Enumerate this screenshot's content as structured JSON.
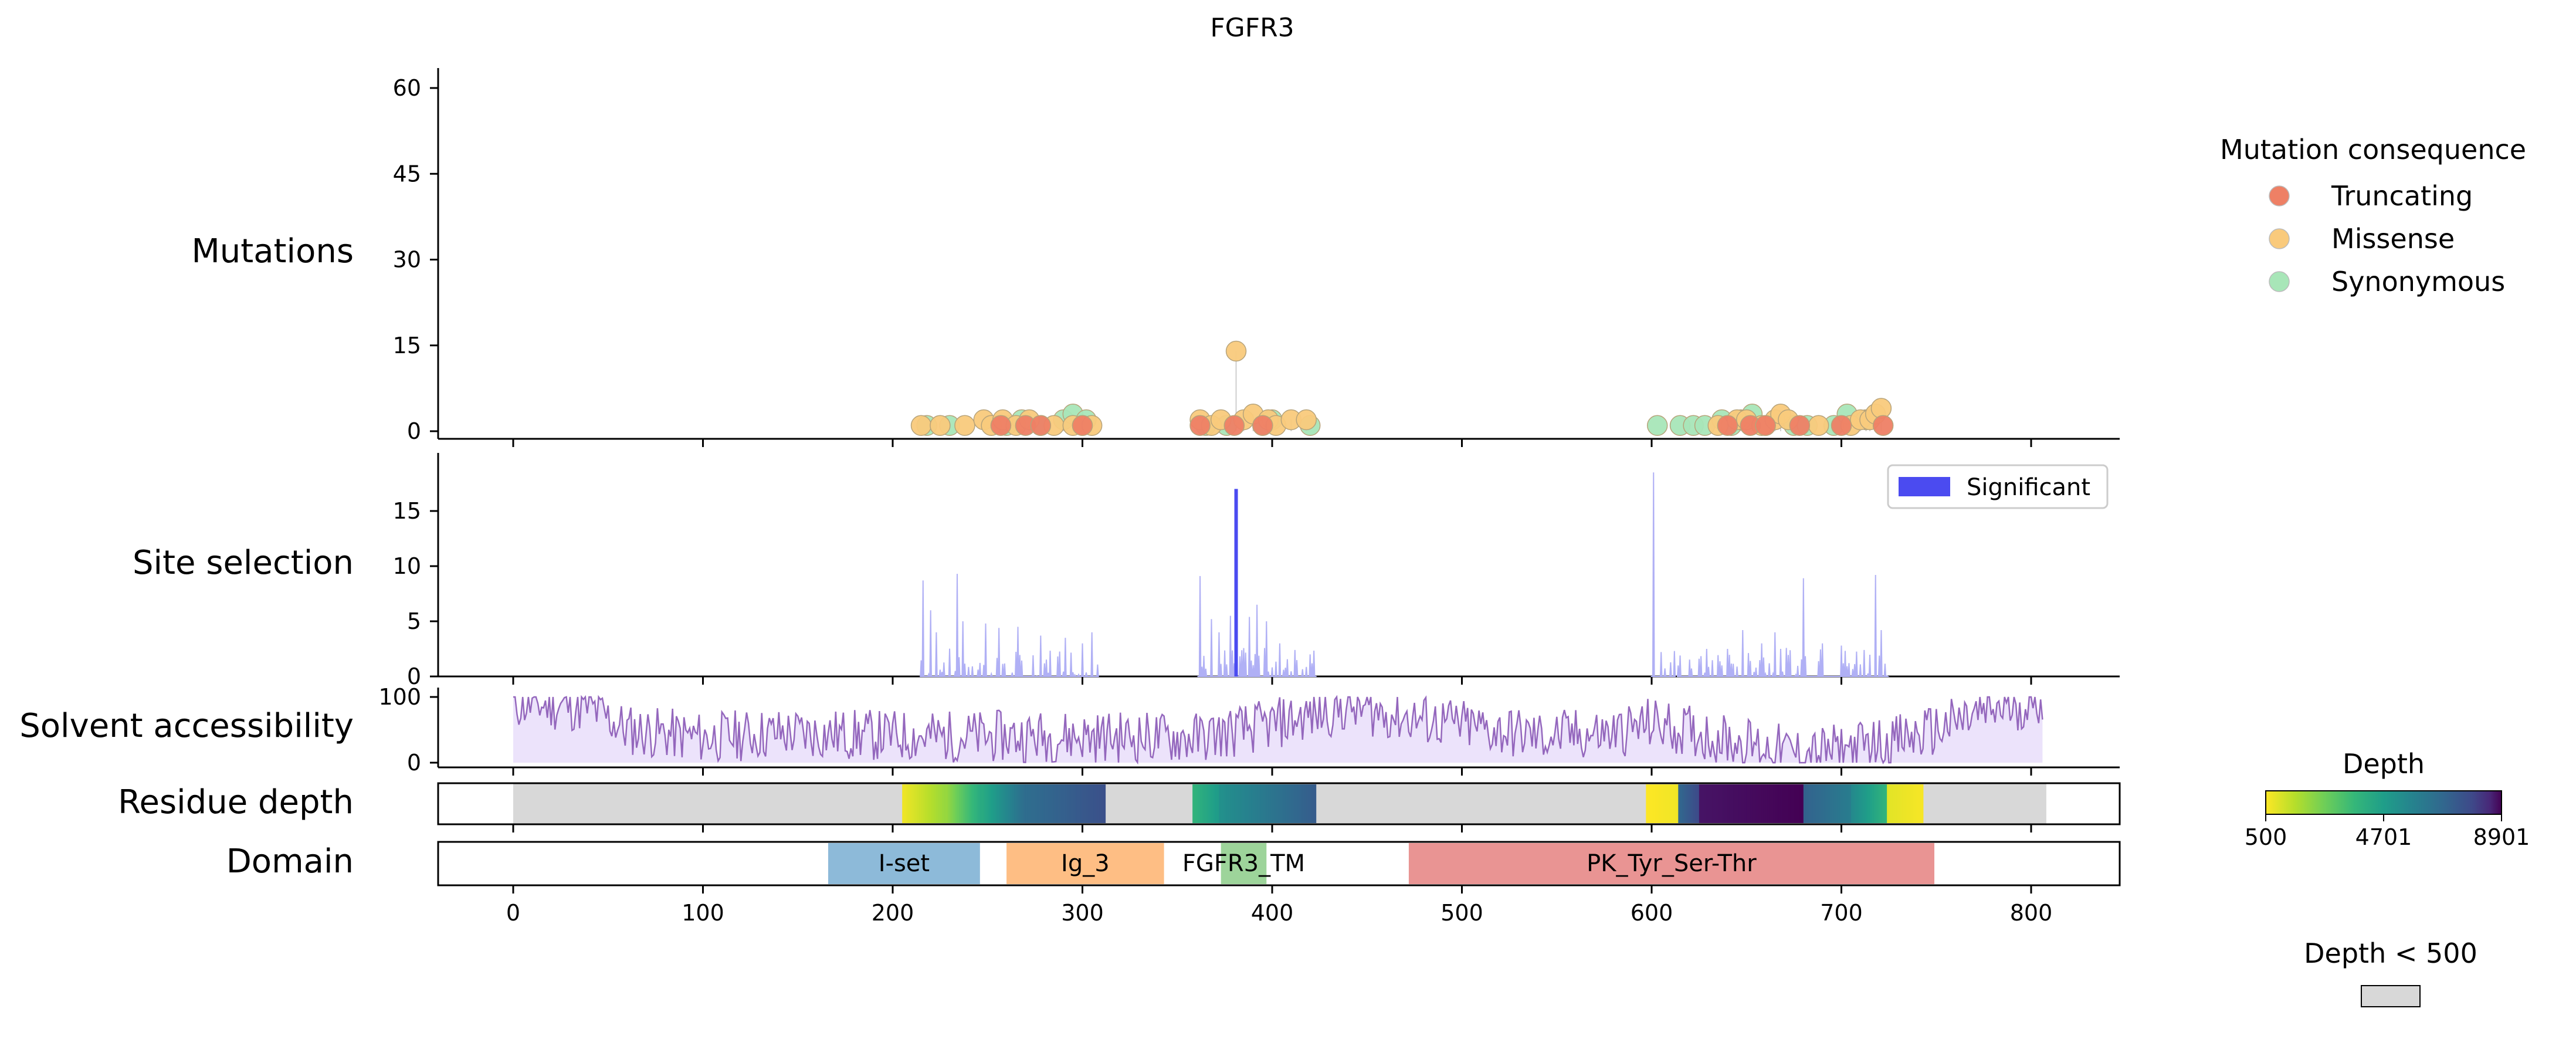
{
  "figure": {
    "title": "FGFR3"
  },
  "chart_data": [
    {
      "type": "scatter",
      "panel": "Mutations",
      "ylabel": "Mutations",
      "xlim": [
        -40,
        848
      ],
      "ylim": [
        -2,
        63
      ],
      "yticks": [
        0,
        15,
        30,
        45,
        60
      ],
      "grid": false,
      "legend": {
        "title": "Mutation consequence",
        "placement": "right",
        "entries": [
          {
            "name": "Truncating",
            "color": "#ee8065"
          },
          {
            "name": "Missense",
            "color": "#f9ca7c"
          },
          {
            "name": "Synonymous",
            "color": "#a8e6b8"
          }
        ]
      },
      "series": [
        {
          "name": "Truncating",
          "color": "#ee8065",
          "points": [
            [
              257,
              1
            ],
            [
              270,
              1
            ],
            [
              278,
              1
            ],
            [
              300,
              1
            ],
            [
              362,
              1
            ],
            [
              380,
              1
            ],
            [
              395,
              1
            ],
            [
              640,
              1
            ],
            [
              652,
              1
            ],
            [
              660,
              1
            ],
            [
              678,
              1
            ],
            [
              700,
              1
            ],
            [
              722,
              1
            ]
          ]
        },
        {
          "name": "Missense",
          "color": "#f9ca7c",
          "points": [
            [
              215,
              1
            ],
            [
              225,
              1
            ],
            [
              238,
              1
            ],
            [
              248,
              2
            ],
            [
              252,
              1
            ],
            [
              258,
              2
            ],
            [
              265,
              1
            ],
            [
              272,
              2
            ],
            [
              285,
              1
            ],
            [
              295,
              1
            ],
            [
              300,
              1
            ],
            [
              305,
              1
            ],
            [
              362,
              2
            ],
            [
              368,
              1
            ],
            [
              373,
              2
            ],
            [
              381,
              14
            ],
            [
              385,
              2
            ],
            [
              390,
              3
            ],
            [
              398,
              2
            ],
            [
              402,
              1
            ],
            [
              410,
              2
            ],
            [
              418,
              2
            ],
            [
              635,
              1
            ],
            [
              645,
              2
            ],
            [
              650,
              2
            ],
            [
              658,
              1
            ],
            [
              665,
              2
            ],
            [
              668,
              3
            ],
            [
              672,
              2
            ],
            [
              688,
              1
            ],
            [
              705,
              1
            ],
            [
              710,
              2
            ],
            [
              715,
              2
            ],
            [
              718,
              3
            ],
            [
              721,
              4
            ]
          ]
        },
        {
          "name": "Synonymous",
          "color": "#a8e6b8",
          "points": [
            [
              218,
              1
            ],
            [
              230,
              1
            ],
            [
              260,
              1
            ],
            [
              268,
              2
            ],
            [
              278,
              1
            ],
            [
              290,
              2
            ],
            [
              295,
              3
            ],
            [
              302,
              2
            ],
            [
              365,
              1
            ],
            [
              376,
              1
            ],
            [
              395,
              1
            ],
            [
              400,
              2
            ],
            [
              420,
              1
            ],
            [
              603,
              1
            ],
            [
              615,
              1
            ],
            [
              622,
              1
            ],
            [
              628,
              1
            ],
            [
              637,
              2
            ],
            [
              642,
              1
            ],
            [
              647,
              2
            ],
            [
              653,
              3
            ],
            [
              660,
              1
            ],
            [
              675,
              1
            ],
            [
              682,
              1
            ],
            [
              696,
              1
            ],
            [
              703,
              3
            ],
            [
              713,
              2
            ]
          ]
        }
      ]
    },
    {
      "type": "bar",
      "panel": "Site selection",
      "ylabel": "Site selection",
      "xlim": [
        -40,
        848
      ],
      "ylim": [
        0,
        20
      ],
      "yticks": [
        0,
        5,
        10,
        15
      ],
      "legend": {
        "placement": "top-right",
        "entries": [
          {
            "name": "Significant",
            "color": "#4b4bf0"
          }
        ]
      },
      "background_color": "#b0b0f5",
      "background_regions": [
        [
          215,
          308
        ],
        [
          361,
          423
        ],
        [
          600,
          612
        ],
        [
          614,
          724
        ]
      ],
      "background_peaks": [
        [
          216,
          8.7
        ],
        [
          220,
          6
        ],
        [
          223,
          4
        ],
        [
          234,
          9.3
        ],
        [
          237,
          5
        ],
        [
          249,
          4.8
        ],
        [
          256,
          4.4
        ],
        [
          266,
          4.5
        ],
        [
          278,
          3.7
        ],
        [
          291,
          3.5
        ],
        [
          300,
          3
        ],
        [
          305,
          4
        ],
        [
          362,
          9.1
        ],
        [
          368,
          5.2
        ],
        [
          372,
          4
        ],
        [
          378,
          5.5
        ],
        [
          388,
          5.4
        ],
        [
          392,
          6.5
        ],
        [
          397,
          5
        ],
        [
          404,
          3
        ],
        [
          412,
          2.4
        ],
        [
          420,
          2
        ],
        [
          601,
          18.5
        ],
        [
          615,
          1.9
        ],
        [
          640,
          2.5
        ],
        [
          648,
          4.2
        ],
        [
          658,
          3
        ],
        [
          665,
          4
        ],
        [
          680,
          8.9
        ],
        [
          690,
          3
        ],
        [
          700,
          2.8
        ],
        [
          712,
          2.4
        ],
        [
          718,
          9.2
        ],
        [
          721,
          4.2
        ]
      ],
      "significant": [
        {
          "x": 381,
          "value": 17
        }
      ]
    },
    {
      "type": "area",
      "panel": "Solvent accessibility",
      "ylabel": "Solvent accessibility",
      "xlim": [
        -40,
        848
      ],
      "ylim": [
        0,
        100
      ],
      "yticks": [
        0,
        100
      ],
      "x_range": [
        0,
        806
      ],
      "line_color": "#9467bd",
      "fill_color": "#ece3fb",
      "mean_profile": [
        [
          0,
          90
        ],
        [
          40,
          85
        ],
        [
          60,
          50
        ],
        [
          100,
          38
        ],
        [
          140,
          45
        ],
        [
          220,
          40
        ],
        [
          300,
          40
        ],
        [
          360,
          38
        ],
        [
          395,
          55
        ],
        [
          440,
          85
        ],
        [
          480,
          65
        ],
        [
          540,
          40
        ],
        [
          580,
          45
        ],
        [
          600,
          60
        ],
        [
          640,
          35
        ],
        [
          680,
          12
        ],
        [
          700,
          20
        ],
        [
          740,
          40
        ],
        [
          780,
          80
        ],
        [
          806,
          95
        ]
      ]
    },
    {
      "type": "heatmap",
      "panel": "Residue depth",
      "ylabel": "Residue depth",
      "xlim": [
        -40,
        848
      ],
      "missing_color": "#d8d8d8",
      "missing_label": "Depth < 500",
      "colorbar": {
        "title": "Depth",
        "min": 500,
        "mid": 4701,
        "max": 8901,
        "ticks": [
          "500",
          "4701",
          "8901"
        ],
        "colormap": "viridis_r"
      },
      "x_range": [
        0,
        808
      ],
      "segments": [
        {
          "start": 205,
          "end": 228,
          "from": 700,
          "to": 2000
        },
        {
          "start": 228,
          "end": 247,
          "from": 2000,
          "to": 4200
        },
        {
          "start": 247,
          "end": 270,
          "from": 4200,
          "to": 6600
        },
        {
          "start": 270,
          "end": 312,
          "from": 6600,
          "to": 7600
        },
        {
          "start": 358,
          "end": 372,
          "from": 3800,
          "to": 4800
        },
        {
          "start": 372,
          "end": 423,
          "from": 5200,
          "to": 7200
        },
        {
          "start": 597,
          "end": 614,
          "from": 500,
          "to": 700
        },
        {
          "start": 614,
          "end": 625,
          "from": 6800,
          "to": 7800
        },
        {
          "start": 625,
          "end": 680,
          "from": 8700,
          "to": 8901
        },
        {
          "start": 680,
          "end": 705,
          "from": 7000,
          "to": 6000
        },
        {
          "start": 705,
          "end": 724,
          "from": 5500,
          "to": 3800
        },
        {
          "start": 724,
          "end": 743,
          "from": 900,
          "to": 600
        }
      ]
    },
    {
      "type": "bar",
      "panel": "Domain",
      "ylabel": "Domain",
      "xlim": [
        -40,
        848
      ],
      "xlabel": "",
      "xticks": [
        0,
        100,
        200,
        300,
        400,
        500,
        600,
        700,
        800
      ],
      "domains": [
        {
          "name": "I-set",
          "start": 166,
          "end": 246,
          "color": "#8dbad9"
        },
        {
          "name": "Ig_3",
          "start": 260,
          "end": 343,
          "color": "#febe84"
        },
        {
          "name": "FGFR3_TM",
          "start": 373,
          "end": 397,
          "color": "#9dd49a"
        },
        {
          "name": "PK_Tyr_Ser-Thr",
          "start": 472,
          "end": 749,
          "color": "#e99493"
        }
      ]
    }
  ]
}
